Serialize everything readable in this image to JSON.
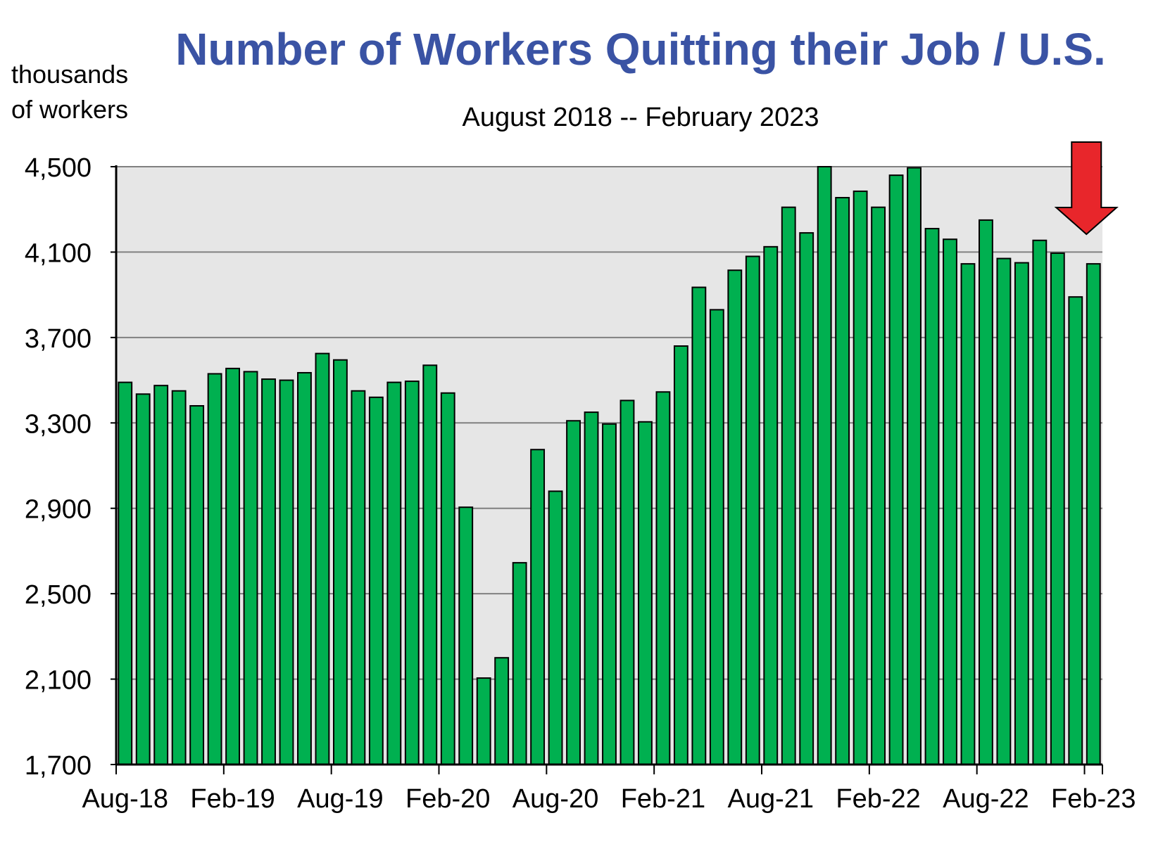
{
  "chart_data": {
    "type": "bar",
    "title": "Number of Workers Quitting their Job / U.S.",
    "subtitle": "August 2018 -- February 2023",
    "ylabel_lines": [
      "thousands",
      "of workers"
    ],
    "xlabel": "",
    "ylim": [
      1700,
      4500
    ],
    "yticks": [
      1700,
      2100,
      2500,
      2900,
      3300,
      3700,
      4100,
      4500
    ],
    "ytick_labels": [
      "1,700",
      "2,100",
      "2,500",
      "2,900",
      "3,300",
      "3,700",
      "4,100",
      "4,500"
    ],
    "grid": true,
    "categories": [
      "Aug-18",
      "Sep-18",
      "Oct-18",
      "Nov-18",
      "Dec-18",
      "Jan-19",
      "Feb-19",
      "Mar-19",
      "Apr-19",
      "May-19",
      "Jun-19",
      "Jul-19",
      "Aug-19",
      "Sep-19",
      "Oct-19",
      "Nov-19",
      "Dec-19",
      "Jan-20",
      "Feb-20",
      "Mar-20",
      "Apr-20",
      "May-20",
      "Jun-20",
      "Jul-20",
      "Aug-20",
      "Sep-20",
      "Oct-20",
      "Nov-20",
      "Dec-20",
      "Jan-21",
      "Feb-21",
      "Mar-21",
      "Apr-21",
      "May-21",
      "Jun-21",
      "Jul-21",
      "Aug-21",
      "Sep-21",
      "Oct-21",
      "Nov-21",
      "Dec-21",
      "Jan-22",
      "Feb-22",
      "Mar-22",
      "Apr-22",
      "May-22",
      "Jun-22",
      "Jul-22",
      "Aug-22",
      "Sep-22",
      "Oct-22",
      "Nov-22",
      "Dec-22",
      "Jan-23",
      "Feb-23"
    ],
    "x_tick_labels": [
      "Aug-18",
      "Feb-19",
      "Aug-19",
      "Feb-20",
      "Aug-20",
      "Feb-21",
      "Aug-21",
      "Feb-22",
      "Aug-22",
      "Feb-23"
    ],
    "x_tick_label_index": [
      0,
      6,
      12,
      18,
      24,
      30,
      36,
      42,
      48,
      54
    ],
    "values": [
      3490,
      3435,
      3475,
      3450,
      3380,
      3530,
      3555,
      3540,
      3505,
      3500,
      3535,
      3625,
      3595,
      3450,
      3420,
      3490,
      3495,
      3570,
      3440,
      2905,
      2105,
      2200,
      2645,
      3175,
      2980,
      3310,
      3350,
      3295,
      3405,
      3305,
      3445,
      3660,
      3935,
      3830,
      4015,
      4080,
      4125,
      4310,
      4190,
      4500,
      4355,
      4385,
      4310,
      4460,
      4495,
      4210,
      4160,
      4045,
      4250,
      4070,
      4050,
      4155,
      4095,
      3890,
      4045
    ],
    "colors": {
      "bar_fill": "#00b050",
      "bar_stroke": "#000000",
      "grid": "#808080",
      "title": "#3a53a4",
      "arrow": "#e8262b",
      "plot_bg": "#e6e6e6"
    },
    "annotations": [
      {
        "type": "arrow-down",
        "color": "#e8262b",
        "at_category": "Feb-23"
      }
    ]
  }
}
